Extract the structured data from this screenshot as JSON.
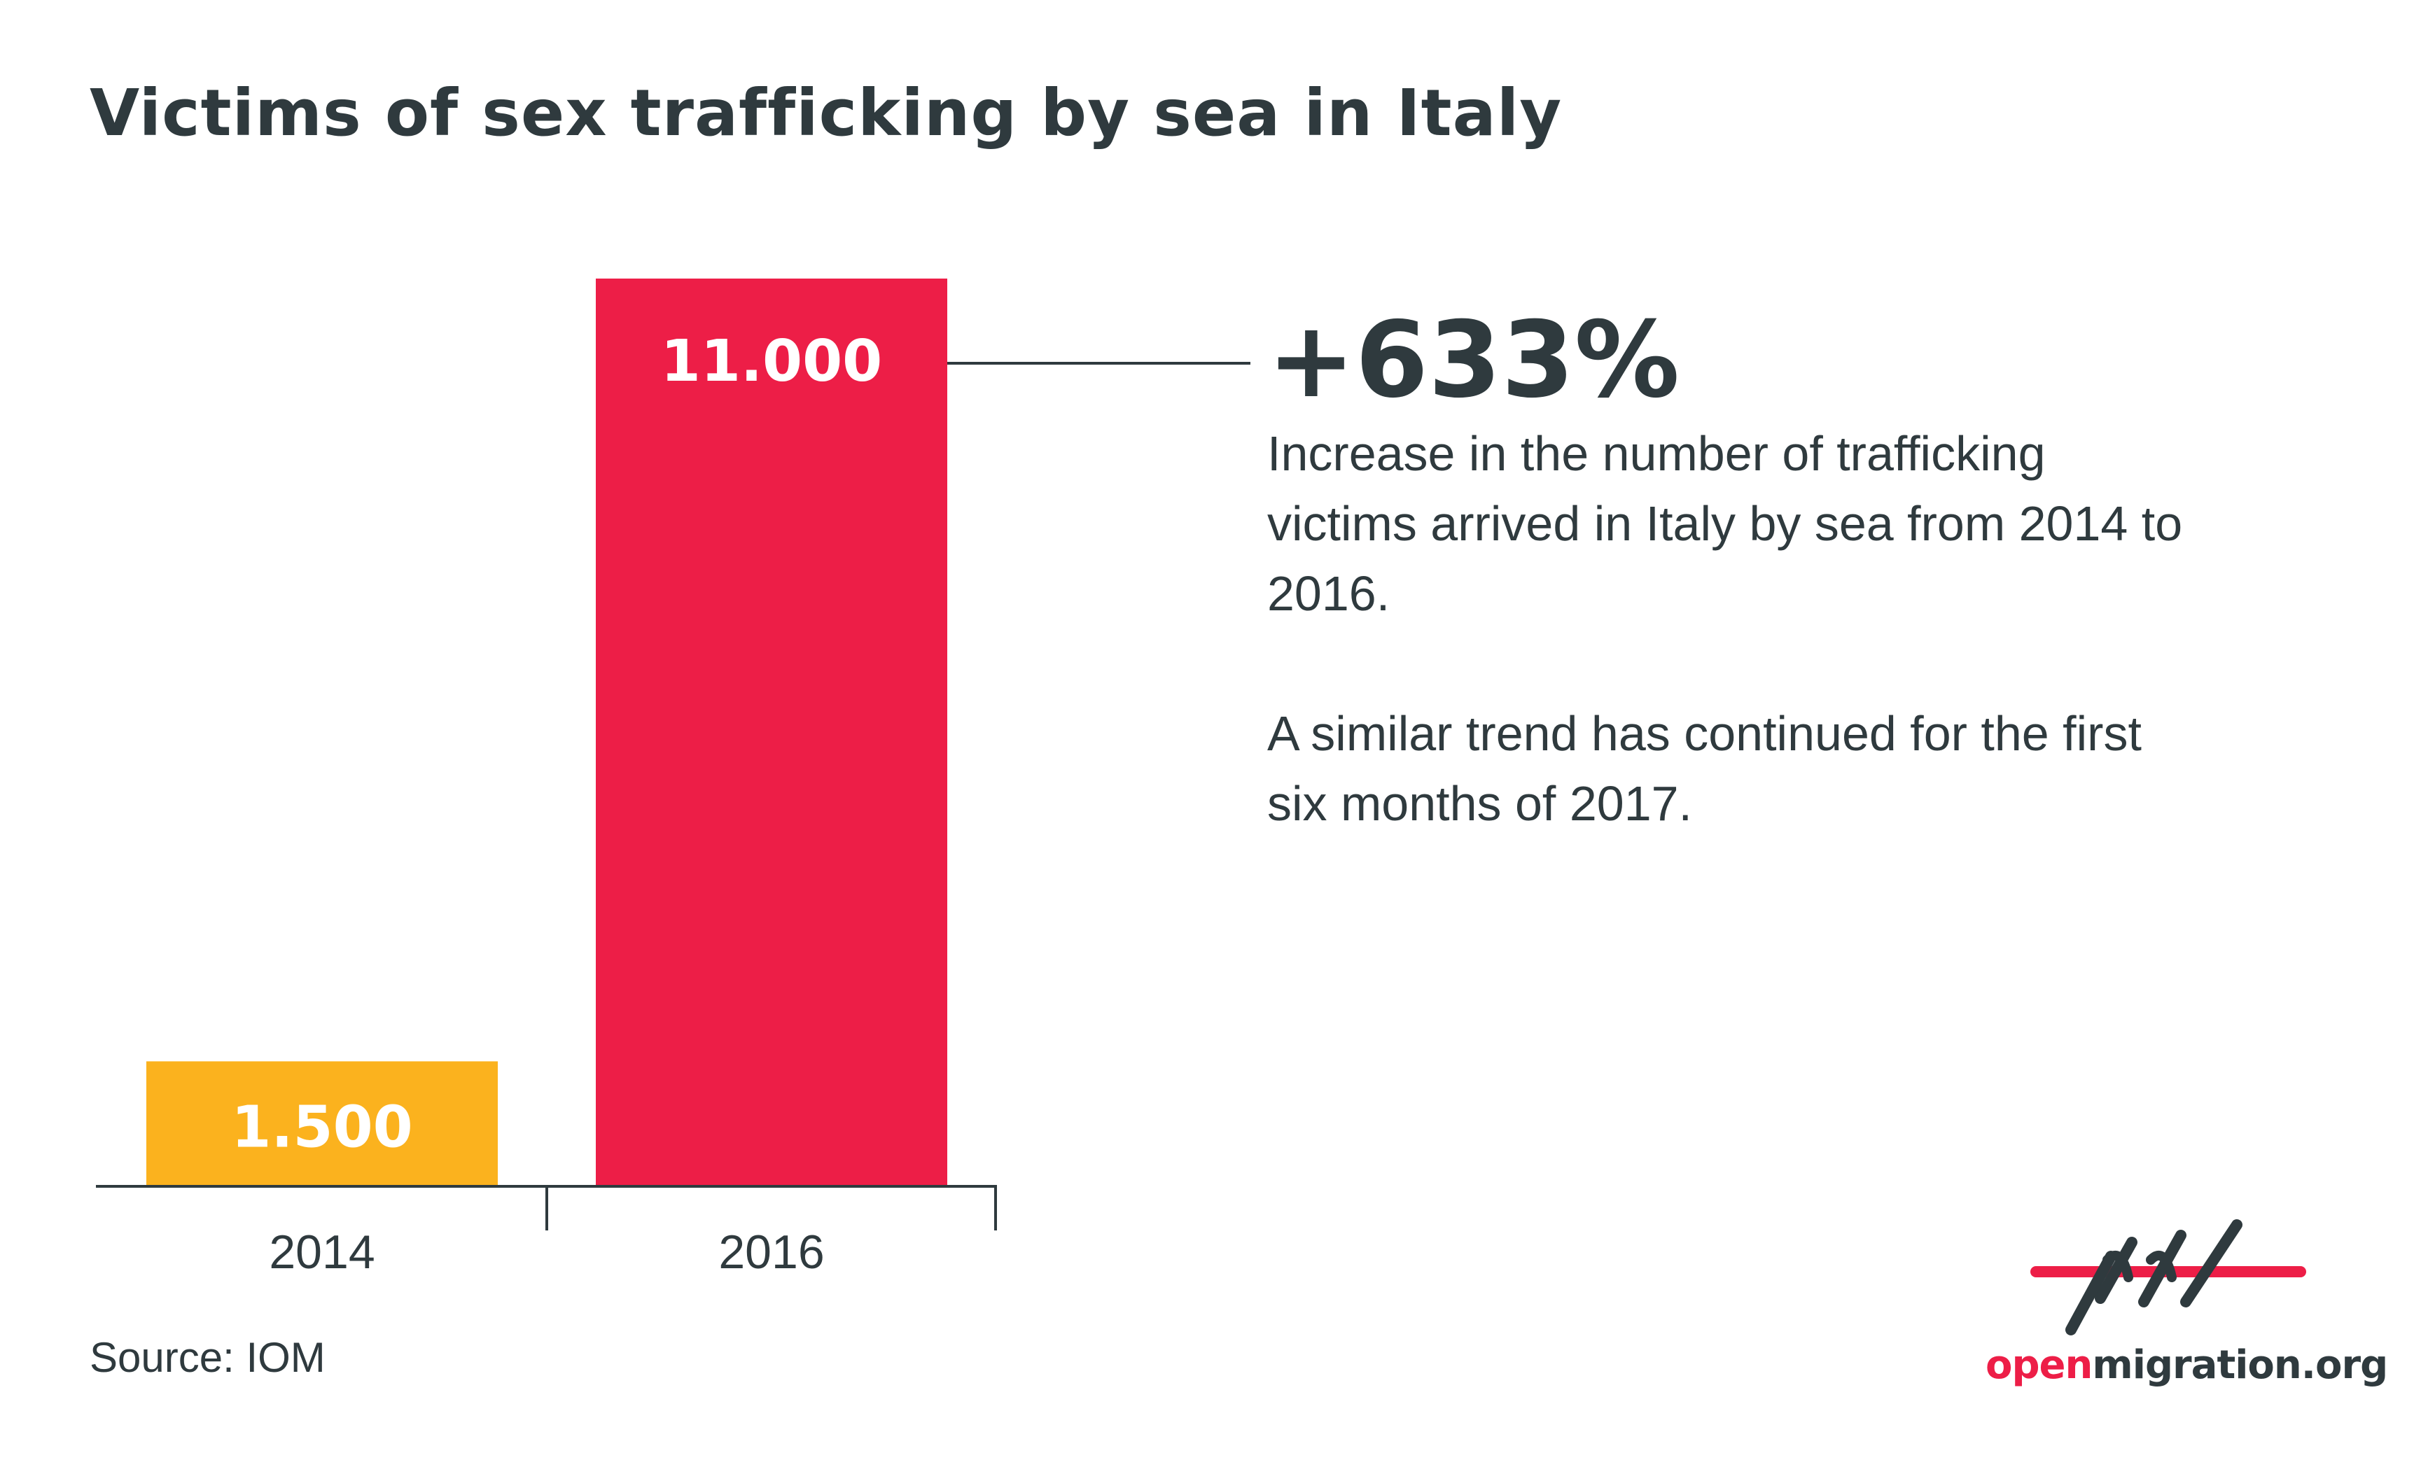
{
  "chart_data": {
    "type": "bar",
    "title": "Victims of sex trafficking by sea in Italy",
    "categories": [
      "2014",
      "2016"
    ],
    "values": [
      1500,
      11000
    ],
    "value_labels": [
      "1.500",
      "11.000"
    ],
    "bar_colors": [
      "#fbb21e",
      "#ed1e47"
    ],
    "ylim": [
      0,
      11000
    ],
    "grid": false,
    "legend": "none",
    "xlabel": "",
    "ylabel": ""
  },
  "annotation": {
    "stat": "+633%",
    "description": "Increase in the number of trafficking victims arrived in Italy by sea from 2014 to 2016.",
    "note": "A similar trend has continued for the first six months of 2017."
  },
  "source": "Source: IOM",
  "brand": {
    "logo_icon": "openmigration-logo-icon",
    "name_highlight": "open",
    "name_rest": "migration.org",
    "accent_color": "#ed1e47",
    "text_color": "#2f3a3e"
  }
}
